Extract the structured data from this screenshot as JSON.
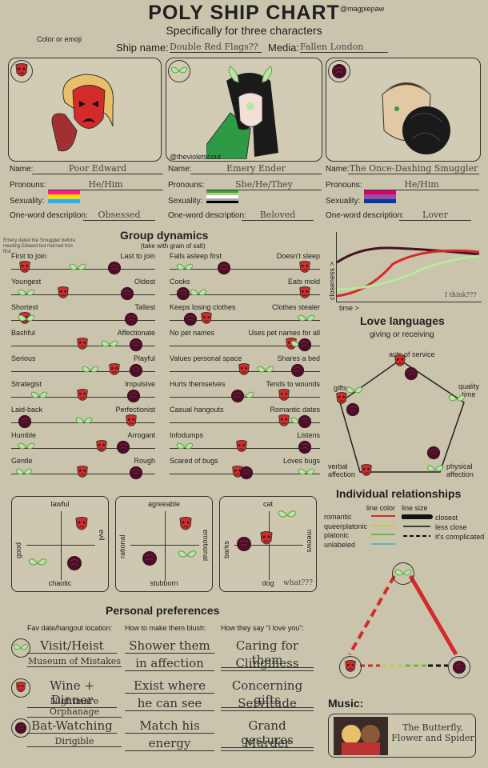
{
  "header": {
    "title": "POLY SHIP CHART",
    "subtitle": "Specifically for three characters",
    "handle": "@magpiepaw"
  },
  "color_hint": "Color or emoji",
  "ship": {
    "label": "Ship name:",
    "value": "Double Red Flags??",
    "media_label": "Media:",
    "media_value": "Fallen London"
  },
  "artist_credit": "@thevioletscout",
  "field_labels": {
    "name": "Name:",
    "pronouns": "Pronouns:",
    "sexuality": "Sexuality:",
    "word": "One-word description:"
  },
  "characters": [
    {
      "name": "Poor Edward",
      "pronouns": "He/Him",
      "word": "Obsessed",
      "symbol": "mask"
    },
    {
      "name": "Emery Ender",
      "pronouns": "She/He/They",
      "word": "Beloved",
      "symbol": "moth"
    },
    {
      "name": "The Once-Dashing Smuggler",
      "pronouns": "He/Him",
      "word": "Lover",
      "symbol": "rose"
    }
  ],
  "colors": {
    "mask": "#d42a2a",
    "moth": "#b8e8a0",
    "rose": "#4a0f26",
    "bg": "#c9c4ab"
  },
  "group": {
    "title": "Group dynamics",
    "subtitle": "(take with grain of salt)",
    "note": "Emery dated the Smuggler before meeting Edward but married him first",
    "left": [
      {
        "l": "First to join",
        "r": "Last to join",
        "mask": 0.05,
        "moth": 0.45,
        "rose": 0.75
      },
      {
        "l": "Youngest",
        "r": "Oldest",
        "mask": 0.35,
        "moth": 0.05,
        "rose": 0.85
      },
      {
        "l": "Shortest",
        "r": "Tallest",
        "mask": 0.05,
        "moth": 0.05,
        "rose": 0.88
      },
      {
        "l": "Bashful",
        "r": "Affectionate",
        "mask": 0.5,
        "moth": 0.7,
        "rose": 0.92
      },
      {
        "l": "Serious",
        "r": "Playful",
        "mask": 0.75,
        "moth": 0.55,
        "rose": 0.92
      },
      {
        "l": "Strategist",
        "r": "Impulsive",
        "mask": 0.5,
        "moth": 0.15,
        "rose": 0.9
      },
      {
        "l": "Laid-back",
        "r": "Perfectionist",
        "mask": 0.88,
        "moth": 0.5,
        "rose": 0.05
      },
      {
        "l": "Humble",
        "r": "Arrogant",
        "mask": 0.65,
        "moth": 0.05,
        "rose": 0.82
      },
      {
        "l": "Gentle",
        "r": "Rough",
        "mask": 0.5,
        "moth": 0.03,
        "rose": 0.92
      }
    ],
    "right": [
      {
        "l": "Falls asleep first",
        "r": "Doesn't sleep",
        "mask": 0.95,
        "moth": 0.05,
        "rose": 0.35
      },
      {
        "l": "Cooks",
        "r": "Eats mold",
        "mask": 0.95,
        "moth": 0.15,
        "rose": 0.05
      },
      {
        "l": "Keeps losing clothes",
        "r": "Clothes stealer",
        "mask": 0.22,
        "moth": 0.95,
        "rose": 0.1
      },
      {
        "l": "No pet names",
        "r": "Uses pet names for all",
        "mask": 0.85,
        "moth": 0.9,
        "rose": 0.95
      },
      {
        "l": "Values personal space",
        "r": "Shares a bed",
        "mask": 0.5,
        "moth": 0.65,
        "rose": 0.9
      },
      {
        "l": "Hurts themselves",
        "r": "Tends to wounds",
        "mask": 0.8,
        "moth": 0.5,
        "rose": 0.45
      },
      {
        "l": "Casual hangouts",
        "r": "Romantic dates",
        "mask": 0.8,
        "moth": 0.9,
        "rose": 0.95
      },
      {
        "l": "Infodumps",
        "r": "Listens",
        "mask": 0.48,
        "moth": 0.05,
        "rose": 0.95
      },
      {
        "l": "Scared of bugs",
        "r": "Loves bugs",
        "mask": 0.45,
        "moth": 0.95,
        "rose": 0.52
      }
    ]
  },
  "closeness": {
    "ylabel": "closeness >",
    "xlabel": "time >",
    "note": "I think???"
  },
  "love": {
    "title": "Love languages",
    "subtitle": "giving or receiving",
    "acts": "acts of service",
    "gifts": "gifts",
    "quality": "quality time",
    "verbal": "verbal affection",
    "physical": "physical affection"
  },
  "relationships": {
    "title": "Individual relationships",
    "line_color": "line color",
    "line_size": "line size",
    "types": [
      "romantic",
      "queerplatonic",
      "platonic",
      "unlabeled"
    ],
    "sizes": [
      "closest",
      "less close",
      "it's complicated"
    ]
  },
  "grids": [
    {
      "top": "lawful",
      "bottom": "chaotic",
      "left": "good",
      "right": "evil"
    },
    {
      "top": "agreeable",
      "bottom": "stubborn",
      "left": "rational",
      "right": "emotional"
    },
    {
      "top": "cat",
      "bottom": "dog",
      "left": "barks",
      "right": "meows",
      "note": "what???"
    }
  ],
  "prefs": {
    "title": "Personal preferences",
    "col1": "Fav date/hangout location:",
    "col2": "How to make them blush:",
    "col3": "How they say \"I love you\":",
    "rows": [
      {
        "a": "Visit/Heist",
        "b": "Museum of Mistakes",
        "c1": "Shower them",
        "c2": "in affection",
        "d1": "Caring for them",
        "d2": "Clinginess"
      },
      {
        "a": "Wine + Dinner",
        "b": "Nightmare Orphanage",
        "c1": "Exist where",
        "c2": "he can see",
        "d1": "Concerning gifts",
        "d2": "Servitude"
      },
      {
        "a": "Bat-Watching",
        "b": "Dirigible",
        "c1": "Match his",
        "c2": "energy",
        "d1": "Grand gestures",
        "d2": "Murder"
      }
    ]
  },
  "music": {
    "title": "Music:",
    "song": "The Butterfly, Flower and Spider"
  }
}
